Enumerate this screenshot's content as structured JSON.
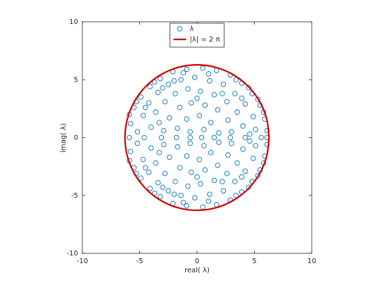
{
  "chart_data": {
    "type": "scatter",
    "xlabel": "real( λ)",
    "ylabel": "imag( λ)",
    "xlim": [
      -10,
      10
    ],
    "ylim": [
      -10,
      10
    ],
    "xticks": [
      -10,
      -5,
      0,
      5,
      10
    ],
    "yticks": [
      -10,
      -5,
      0,
      5,
      10
    ],
    "legend_position": "top",
    "series": [
      {
        "name": "λ",
        "mode": "markers",
        "color": "#0072bd",
        "x": [
          -5.9,
          -4.6,
          -3.1,
          -1.8,
          -0.6,
          0.4,
          1.5,
          2.9,
          4.2,
          5.6,
          6.1,
          -5.8,
          -5.5,
          -4.9,
          -4.1,
          -3.2,
          -2.1,
          -0.9,
          0.5,
          1.7,
          2.9,
          3.9,
          4.8,
          5.5,
          5.9,
          6.1,
          -5.2,
          -4.7,
          -4.2,
          -3.4,
          -2.5,
          -1.4,
          -0.2,
          1.1,
          2.3,
          3.3,
          4.2,
          4.9,
          5.1,
          -4.0,
          -3.6,
          -2.8,
          -1.9,
          -0.8,
          0.3,
          1.5,
          2.6,
          3.5,
          4.0,
          -2.9,
          -2.4,
          -1.5,
          -0.5,
          0.7,
          1.8,
          2.7,
          3.0,
          -1.7,
          -0.9,
          0.2,
          1.2,
          1.9,
          -0.6,
          0.6,
          -3.3,
          -4.5,
          -5.9,
          -3.7,
          -1.2,
          1.0,
          3.4,
          4.5,
          5.8,
          4.6,
          3.9,
          -2.0,
          0.0,
          2.2,
          -3.0,
          5.3,
          -5.3,
          -5.8,
          -5.5,
          -4.9,
          -4.1,
          -3.2,
          -2.1,
          -0.9,
          0.5,
          1.7,
          2.9,
          3.9,
          4.8,
          5.5,
          5.9,
          6.1,
          -5.2,
          -4.7,
          -4.2,
          -3.4,
          -2.5,
          -1.4,
          -0.2,
          1.1,
          2.3,
          3.3,
          4.2,
          4.9,
          5.1,
          -4.0,
          -3.6,
          -2.8,
          -1.9,
          -0.8,
          0.3,
          1.5,
          2.6,
          3.5,
          4.0,
          -2.9,
          -2.4,
          -1.5,
          -0.5,
          0.7,
          1.8,
          2.7,
          3.0,
          -1.7,
          -0.9,
          0.2,
          1.2,
          1.9,
          -0.6,
          0.6,
          -3.3,
          -4.5,
          -5.9,
          -3.7,
          -1.2,
          1.0,
          3.4,
          4.5,
          5.8,
          4.6,
          3.9,
          -2.0,
          0.0,
          2.2,
          -3.0,
          5.3,
          -5.3
        ],
        "y": [
          0,
          0,
          0,
          0,
          0,
          0,
          0,
          0,
          0,
          0,
          0,
          1.2,
          2.6,
          3.5,
          4.4,
          5.1,
          5.7,
          5.9,
          6.0,
          5.8,
          5.4,
          4.7,
          3.8,
          2.8,
          1.6,
          0.6,
          0.5,
          1.9,
          3.0,
          3.9,
          4.6,
          5.0,
          5.2,
          4.9,
          4.6,
          3.8,
          2.9,
          1.8,
          0.7,
          0.9,
          2.2,
          3.1,
          3.8,
          4.2,
          4.0,
          3.7,
          3.1,
          2.2,
          1.0,
          0.6,
          1.7,
          2.6,
          3.0,
          2.8,
          2.4,
          1.5,
          0.5,
          0.8,
          1.6,
          1.9,
          1.3,
          0.4,
          0.5,
          0.7,
          1.3,
          2.6,
          2.0,
          4.8,
          5.6,
          5.5,
          5.0,
          4.3,
          2.2,
          0.3,
          3.4,
          4.9,
          3.4,
          3.8,
          4.3,
          3.3,
          3.1,
          -1.2,
          -2.6,
          -3.5,
          -4.4,
          -5.1,
          -5.7,
          -5.9,
          -6.0,
          -5.8,
          -5.4,
          -4.7,
          -3.8,
          -2.8,
          -1.6,
          -0.6,
          -0.5,
          -1.9,
          -3.0,
          -3.9,
          -4.6,
          -5.0,
          -5.2,
          -4.9,
          -4.6,
          -3.8,
          -2.9,
          -1.8,
          -0.7,
          -0.9,
          -2.2,
          -3.1,
          -3.8,
          -4.2,
          -4.0,
          -3.7,
          -3.1,
          -2.2,
          -1.0,
          -0.6,
          -1.7,
          -2.6,
          -3.0,
          -2.8,
          -2.4,
          -1.5,
          -0.5,
          -0.8,
          -1.6,
          -1.9,
          -1.3,
          -0.4,
          -0.5,
          -0.7,
          -1.3,
          -2.6,
          -2.0,
          -4.8,
          -5.6,
          -5.5,
          -5.0,
          -4.3,
          -2.2,
          -0.3,
          -3.4,
          -4.9,
          -3.4,
          -3.8,
          -4.3,
          -3.3,
          -3.1
        ]
      },
      {
        "name": "|λ| = 2 π",
        "mode": "line",
        "color": "#d40000",
        "x": [
          6.283,
          6.069,
          5.441,
          4.443,
          3.142,
          1.626,
          0,
          -1.626,
          -3.142,
          -4.443,
          -5.441,
          -6.069,
          -6.283,
          -6.069,
          -5.441,
          -4.443,
          -3.142,
          -1.626,
          0,
          1.626,
          3.142,
          4.443,
          5.441,
          6.069,
          6.283
        ],
        "y": [
          0,
          1.626,
          3.142,
          4.443,
          5.441,
          6.069,
          6.283,
          6.069,
          5.441,
          4.443,
          3.142,
          1.626,
          0,
          -1.626,
          -3.142,
          -4.443,
          -5.441,
          -6.069,
          -6.283,
          -6.069,
          -5.441,
          -4.443,
          -3.142,
          -1.626,
          0
        ]
      }
    ]
  }
}
